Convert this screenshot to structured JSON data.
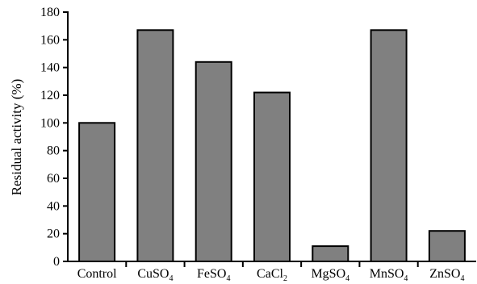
{
  "chart_data": {
    "type": "bar",
    "title": "",
    "xlabel": "",
    "ylabel": "Residual activity (%)",
    "ylim": [
      0,
      180
    ],
    "yticks": [
      0,
      20,
      40,
      60,
      80,
      100,
      120,
      140,
      160,
      180
    ],
    "grid": false,
    "categories": [
      {
        "base": "Control",
        "sub": ""
      },
      {
        "base": "CuSO",
        "sub": "4"
      },
      {
        "base": "FeSO",
        "sub": "4"
      },
      {
        "base": "CaCl",
        "sub": "2"
      },
      {
        "base": "MgSO",
        "sub": "4"
      },
      {
        "base": "MnSO",
        "sub": "4"
      },
      {
        "base": "ZnSO",
        "sub": "4"
      }
    ],
    "values": [
      100,
      167,
      144,
      122,
      11,
      167,
      22
    ],
    "bar_color": "#808080"
  }
}
